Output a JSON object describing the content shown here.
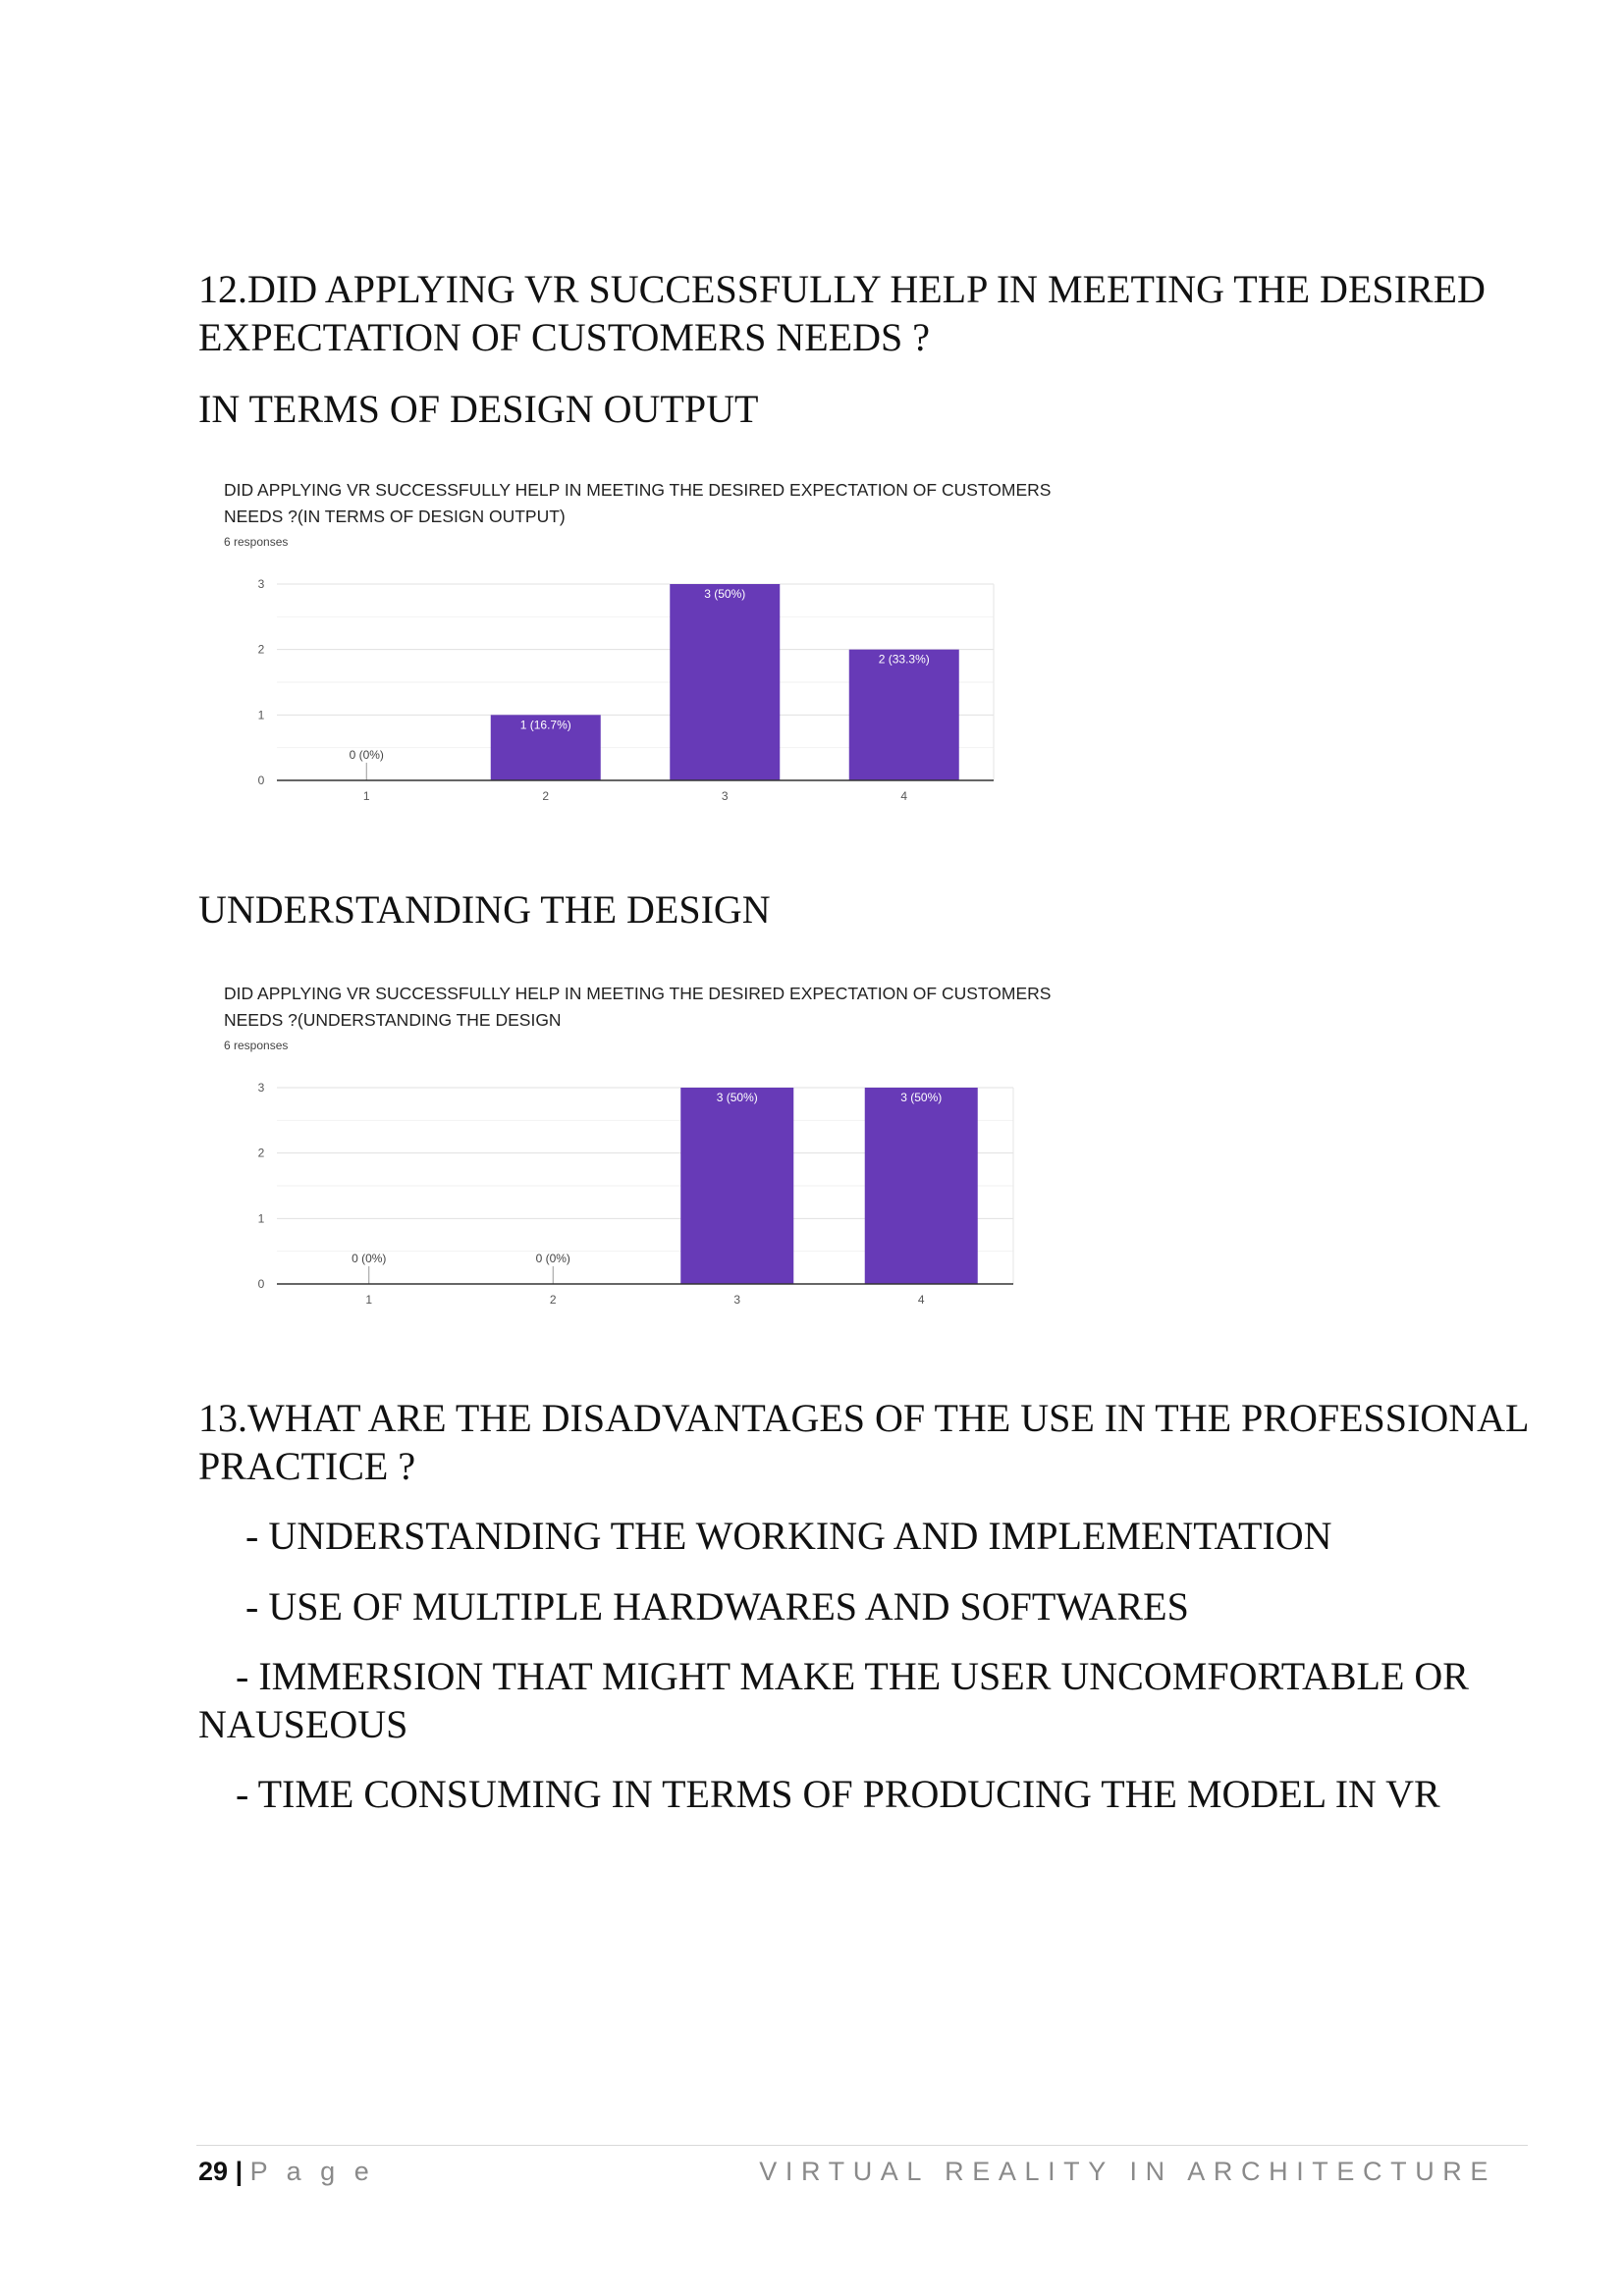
{
  "question12": {
    "heading": "12.DID APPLYING VR SUCCESSFULLY HELP IN MEETING THE DESIRED EXPECTATION OF CUSTOMERS NEEDS ?",
    "section_design_output": "IN TERMS OF DESIGN OUTPUT",
    "section_understanding": "UNDERSTANDING THE DESIGN"
  },
  "question13": {
    "heading": "13.WHAT ARE THE DISADVANTAGES OF THE USE IN THE PROFESSIONAL PRACTICE ?",
    "items": [
      "- UNDERSTANDING THE WORKING AND IMPLEMENTATION",
      "- USE OF MULTIPLE HARDWARES AND SOFTWARES",
      "- IMMERSION THAT MIGHT MAKE THE USER UNCOMFORTABLE OR NAUSEOUS",
      "- TIME CONSUMING IN TERMS OF PRODUCING THE MODEL IN VR"
    ]
  },
  "chart_data": [
    {
      "type": "bar",
      "title_lines": [
        "DID APPLYING VR SUCCESSFULLY HELP IN MEETING THE DESIRED EXPECTATION OF CUSTOMERS",
        "NEEDS ?(IN TERMS OF DESIGN OUTPUT)"
      ],
      "responses": "6 responses",
      "categories": [
        "1",
        "2",
        "3",
        "4"
      ],
      "values": [
        0,
        1,
        3,
        2
      ],
      "data_labels": [
        "0 (0%)",
        "1 (16.7%)",
        "3 (50%)",
        "2 (33.3%)"
      ],
      "y_ticks": [
        "0",
        "1",
        "2",
        "3"
      ],
      "ylim": [
        0,
        3
      ],
      "bar_color": "#673ab7",
      "grid": true
    },
    {
      "type": "bar",
      "title_lines": [
        "DID APPLYING VR SUCCESSFULLY HELP IN MEETING THE DESIRED EXPECTATION OF CUSTOMERS",
        "NEEDS ?(UNDERSTANDING THE DESIGN"
      ],
      "responses": "6 responses",
      "categories": [
        "1",
        "2",
        "3",
        "4"
      ],
      "values": [
        0,
        0,
        3,
        3
      ],
      "data_labels": [
        "0 (0%)",
        "0 (0%)",
        "3 (50%)",
        "3 (50%)"
      ],
      "y_ticks": [
        "0",
        "1",
        "2",
        "3"
      ],
      "ylim": [
        0,
        3
      ],
      "bar_color": "#673ab7",
      "grid": true
    }
  ],
  "footer": {
    "page_number": "29",
    "separator": "|",
    "page_word": "P a g e",
    "running_title": "VIRTUAL REALITY IN ARCHITECTURE"
  }
}
